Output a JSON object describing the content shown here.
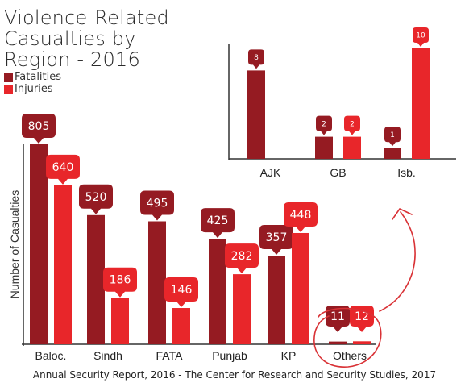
{
  "title_lines": [
    "Violence-Related",
    "Casualties by",
    "Region - 2016"
  ],
  "source": "Annual Security Report, 2016 - The Center for Research and Security Studies, 2017",
  "colors": {
    "fatalities": "#951b22",
    "injuries": "#e8262a",
    "axis": "#333333",
    "annotation": "#d93236"
  },
  "chart_data": [
    {
      "type": "bar",
      "title": "Violence-Related Casualties by Region - 2016",
      "xlabel": "",
      "ylabel": "Number of Casualties",
      "categories": [
        "Baloc.",
        "Sindh",
        "FATA",
        "Punjab",
        "KP",
        "Others"
      ],
      "series": [
        {
          "name": "Fatalities",
          "values": [
            805,
            520,
            495,
            425,
            357,
            11
          ]
        },
        {
          "name": "Injuries",
          "values": [
            640,
            186,
            146,
            282,
            448,
            12
          ]
        }
      ],
      "ylim": [
        0,
        805
      ],
      "grid": false,
      "legend": "top-left"
    },
    {
      "type": "bar",
      "title": "",
      "xlabel": "",
      "ylabel": "",
      "categories": [
        "AJK",
        "GB",
        "Isb."
      ],
      "series": [
        {
          "name": "Fatalities",
          "values": [
            8,
            2,
            1
          ]
        },
        {
          "name": "Injuries",
          "values": [
            0,
            2,
            10
          ]
        }
      ],
      "ylim": [
        0,
        10
      ],
      "grid": false,
      "legend": "none"
    }
  ]
}
